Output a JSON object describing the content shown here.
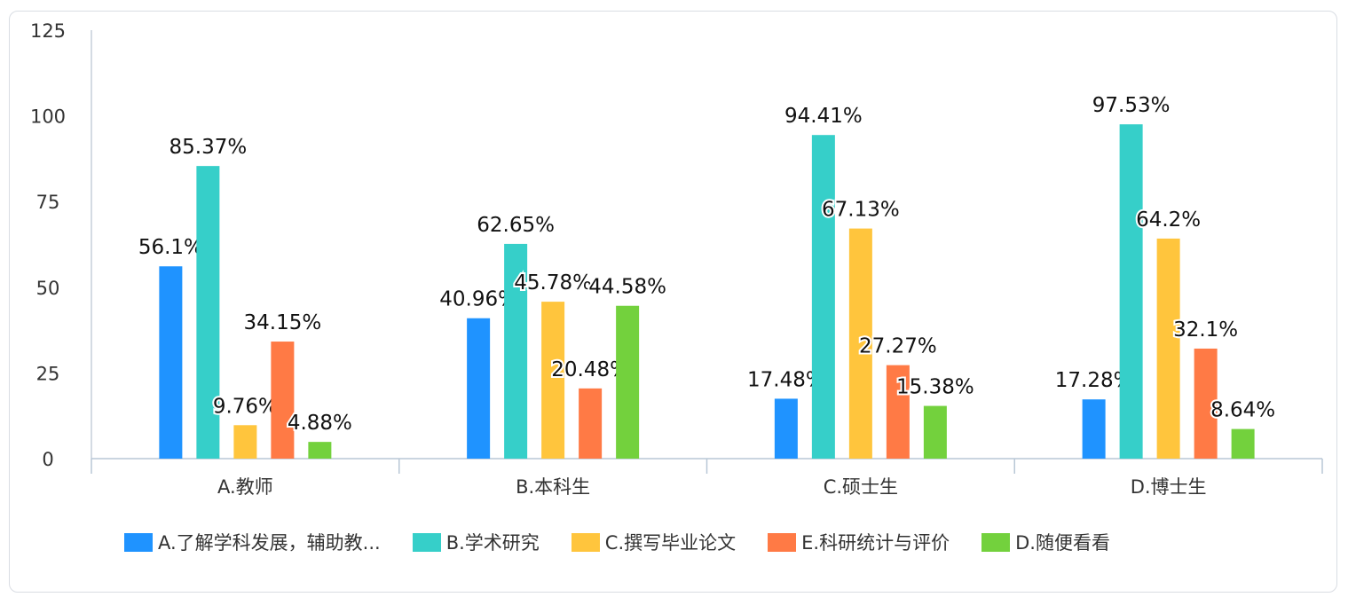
{
  "chart_data": {
    "type": "bar",
    "categories": [
      "A.教师",
      "B.本科生",
      "C.硕士生",
      "D.博士生"
    ],
    "series": [
      {
        "name": "A.了解学科发展，辅助教...",
        "color": "#1f93ff",
        "values": [
          56.1,
          40.96,
          17.48,
          17.28
        ],
        "labels": [
          "56.1%",
          "40.96%",
          "17.48%",
          "17.28%"
        ]
      },
      {
        "name": "B.学术研究",
        "color": "#36cfc9",
        "values": [
          85.37,
          62.65,
          94.41,
          97.53
        ],
        "labels": [
          "85.37%",
          "62.65%",
          "94.41%",
          "97.53%"
        ]
      },
      {
        "name": "C.撰写毕业论文",
        "color": "#ffc53d",
        "values": [
          9.76,
          45.78,
          67.13,
          64.2
        ],
        "labels": [
          "9.76%",
          "45.78%",
          "67.13%",
          "64.2%"
        ]
      },
      {
        "name": "E.科研统计与评价",
        "color": "#ff7a45",
        "values": [
          34.15,
          20.48,
          27.27,
          32.1
        ],
        "labels": [
          "34.15%",
          "20.48%",
          "27.27%",
          "32.1%"
        ]
      },
      {
        "name": "D.随便看看",
        "color": "#73d13d",
        "values": [
          4.88,
          44.58,
          15.38,
          8.64
        ],
        "labels": [
          "4.88%",
          "44.58%",
          "15.38%",
          "8.64%"
        ]
      }
    ],
    "yticks": [
      "0",
      "25",
      "50",
      "75",
      "100",
      "125"
    ],
    "ylim": [
      0,
      125
    ],
    "grid": false,
    "legend_position": "bottom"
  }
}
